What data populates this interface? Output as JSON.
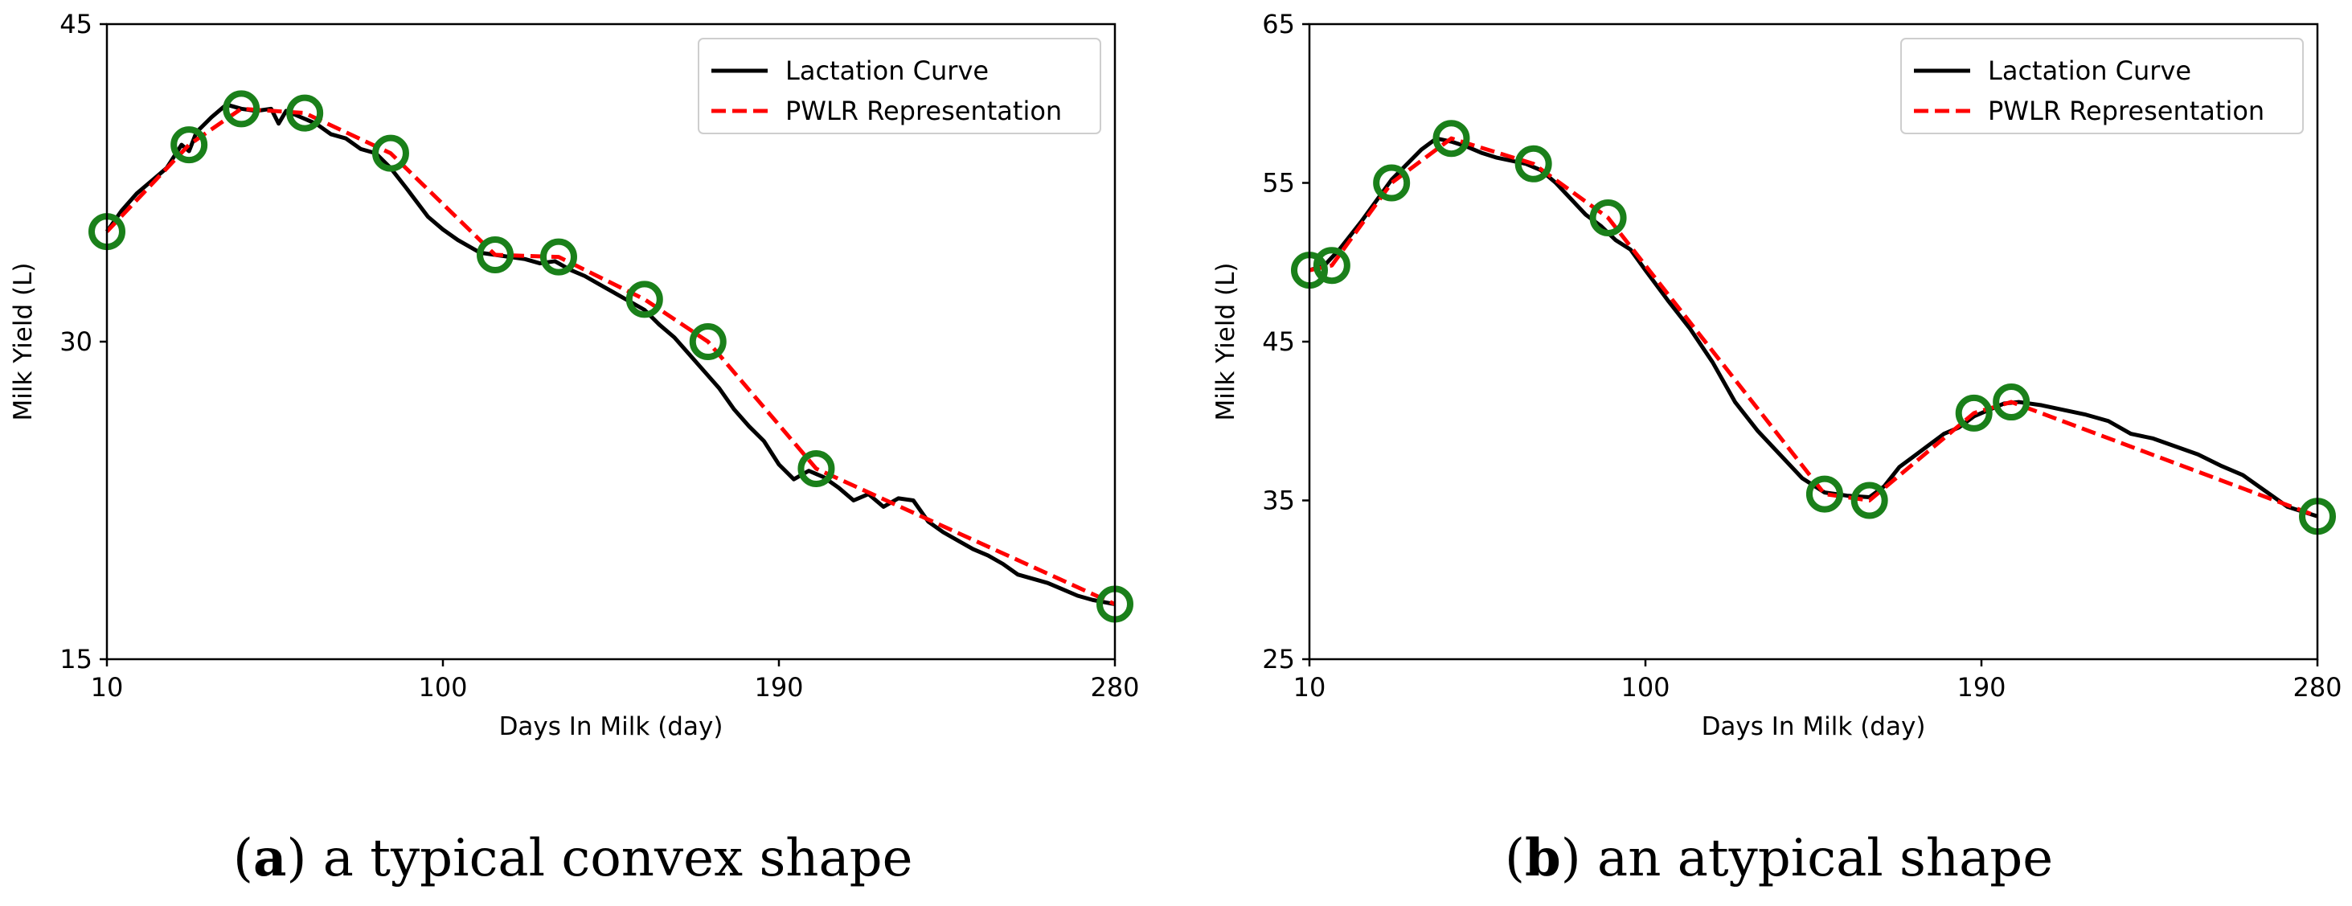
{
  "captions": [
    {
      "letter": "a",
      "text": "a typical convex shape"
    },
    {
      "letter": "b",
      "text": "an atypical shape"
    }
  ],
  "colors": {
    "curve": "#000000",
    "pwlr": "#ff0000",
    "breakpoint": "#1a801a"
  },
  "chart_data": [
    {
      "type": "line",
      "panel": "a",
      "xlabel": "Days In Milk (day)",
      "ylabel": "Milk Yield (L)",
      "xlim": [
        10,
        280
      ],
      "ylim": [
        15,
        45
      ],
      "xticks": [
        10,
        100,
        190,
        280
      ],
      "yticks": [
        15,
        30,
        45
      ],
      "legend": {
        "position": "top-right",
        "entries": [
          "Lactation Curve",
          "PWLR Representation"
        ]
      },
      "series": [
        {
          "name": "Lactation Curve",
          "style": "solid",
          "x": [
            10,
            14,
            18,
            22,
            26,
            30,
            32,
            34,
            38,
            42,
            46,
            50,
            54,
            56,
            58,
            62,
            66,
            70,
            74,
            78,
            82,
            86,
            90,
            96,
            100,
            104,
            110,
            114,
            118,
            122,
            126,
            130,
            134,
            138,
            142,
            146,
            150,
            154,
            158,
            162,
            166,
            170,
            174,
            178,
            182,
            186,
            190,
            194,
            198,
            202,
            206,
            210,
            214,
            218,
            222,
            226,
            230,
            234,
            238,
            242,
            246,
            250,
            254,
            258,
            262,
            266,
            270,
            274,
            280
          ],
          "y": [
            35.2,
            36.2,
            37.0,
            37.6,
            38.2,
            39.3,
            39.0,
            39.9,
            40.6,
            41.2,
            41.0,
            40.9,
            41.0,
            40.3,
            40.9,
            40.6,
            40.3,
            39.8,
            39.6,
            39.1,
            38.9,
            38.2,
            37.3,
            35.9,
            35.3,
            34.8,
            34.2,
            34.1,
            34.0,
            33.9,
            33.7,
            33.8,
            33.4,
            33.1,
            32.7,
            32.3,
            31.9,
            31.5,
            30.8,
            30.2,
            29.4,
            28.6,
            27.8,
            26.8,
            26.0,
            25.3,
            24.2,
            23.5,
            23.9,
            23.6,
            23.1,
            22.5,
            22.8,
            22.2,
            22.6,
            22.5,
            21.5,
            21.0,
            20.6,
            20.2,
            19.9,
            19.5,
            19.0,
            18.8,
            18.6,
            18.3,
            18.0,
            17.8,
            17.6
          ]
        },
        {
          "name": "PWLR Representation",
          "style": "dashed",
          "x": [
            10,
            32,
            46,
            63,
            86,
            114,
            131,
            154,
            171,
            200,
            280
          ],
          "y": [
            35.2,
            39.3,
            41.0,
            40.8,
            38.9,
            34.1,
            34.0,
            32.0,
            30.0,
            24.0,
            17.6
          ]
        },
        {
          "name": "Breakpoints",
          "style": "markers",
          "x": [
            10,
            32,
            46,
            63,
            86,
            114,
            131,
            154,
            171,
            200,
            280
          ],
          "y": [
            35.2,
            39.3,
            41.0,
            40.8,
            38.9,
            34.1,
            34.0,
            32.0,
            30.0,
            24.0,
            17.6
          ]
        }
      ]
    },
    {
      "type": "line",
      "panel": "b",
      "xlabel": "Days In Milk (day)",
      "ylabel": "Milk Yield (L)",
      "xlim": [
        10,
        280
      ],
      "ylim": [
        25,
        65
      ],
      "xticks": [
        10,
        100,
        190,
        280
      ],
      "yticks": [
        25,
        35,
        45,
        55,
        65
      ],
      "legend": {
        "position": "top-right",
        "entries": [
          "Lactation Curve",
          "PWLR Representation"
        ]
      },
      "series": [
        {
          "name": "Lactation Curve",
          "style": "solid",
          "x": [
            10,
            14,
            18,
            24,
            32,
            40,
            44,
            48,
            52,
            56,
            60,
            64,
            68,
            72,
            76,
            80,
            84,
            88,
            92,
            96,
            100,
            106,
            112,
            118,
            124,
            130,
            136,
            142,
            148,
            154,
            160,
            164,
            168,
            172,
            176,
            180,
            184,
            188,
            192,
            196,
            200,
            206,
            212,
            218,
            224,
            230,
            236,
            242,
            248,
            254,
            260,
            266,
            272,
            280
          ],
          "y": [
            49.5,
            49.8,
            50.8,
            52.6,
            55.2,
            57.1,
            57.8,
            57.6,
            57.3,
            56.9,
            56.6,
            56.4,
            56.2,
            55.8,
            55.0,
            54.0,
            53.0,
            52.3,
            51.4,
            50.8,
            49.5,
            47.6,
            45.8,
            43.7,
            41.2,
            39.4,
            37.9,
            36.4,
            35.5,
            35.3,
            35.2,
            35.9,
            37.1,
            37.8,
            38.5,
            39.2,
            39.6,
            40.3,
            40.7,
            41.1,
            41.2,
            41.0,
            40.7,
            40.4,
            40.0,
            39.2,
            38.9,
            38.4,
            37.9,
            37.2,
            36.6,
            35.6,
            34.6,
            34.0
          ]
        },
        {
          "name": "PWLR Representation",
          "style": "dashed",
          "x": [
            10,
            16,
            32,
            48,
            70,
            90,
            148,
            160,
            188,
            198,
            280
          ],
          "y": [
            49.5,
            49.8,
            55.0,
            57.8,
            56.2,
            52.8,
            35.4,
            35.0,
            40.5,
            41.2,
            34.0
          ]
        },
        {
          "name": "Breakpoints",
          "style": "markers",
          "x": [
            10,
            16,
            32,
            48,
            70,
            90,
            148,
            160,
            188,
            198,
            280
          ],
          "y": [
            49.5,
            49.8,
            55.0,
            57.8,
            56.2,
            52.8,
            35.4,
            35.0,
            40.5,
            41.2,
            34.0
          ]
        }
      ]
    }
  ]
}
